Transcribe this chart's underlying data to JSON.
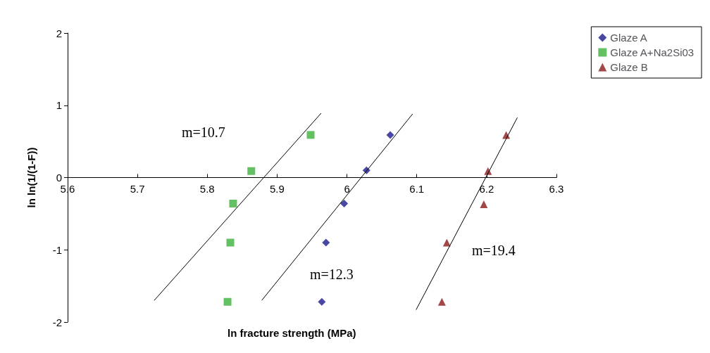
{
  "chart_data": {
    "type": "scatter",
    "xlabel": "ln fracture strength (MPa)",
    "ylabel": "ln ln(1/(1-F))",
    "xlim": [
      5.6,
      6.3
    ],
    "xticks": [
      5.6,
      5.7,
      5.8,
      5.9,
      6,
      6.1,
      6.2,
      6.3
    ],
    "ylim": [
      -2,
      2
    ],
    "yticks": [
      -2,
      -1,
      0,
      1,
      2
    ],
    "grid": false,
    "legend": "right",
    "series": [
      {
        "name": "Glaze A",
        "color": "#1a1a8c",
        "marker": "diamond",
        "x": [
          5.964,
          5.97,
          5.996,
          6.028,
          6.062
        ],
        "values": [
          -1.72,
          -0.9,
          -0.36,
          0.1,
          0.59
        ]
      },
      {
        "name": "Glaze A+Na2Si03",
        "color": "#3cb03c",
        "marker": "square",
        "x": [
          5.829,
          5.833,
          5.837,
          5.863,
          5.948
        ],
        "values": [
          -1.72,
          -0.9,
          -0.36,
          0.09,
          0.59
        ]
      },
      {
        "name": "Glaze B",
        "color": "#8b1a1a",
        "marker": "triangle",
        "x": [
          6.136,
          6.143,
          6.196,
          6.202,
          6.228
        ],
        "values": [
          -1.72,
          -0.9,
          -0.37,
          0.09,
          0.59
        ]
      },
      {
        "type": "line",
        "color": "#000000",
        "marker": "none",
        "x": [
          5.724,
          5.963
        ],
        "values": [
          -1.7,
          0.89
        ]
      },
      {
        "type": "line",
        "color": "#000000",
        "marker": "none",
        "x": [
          5.878,
          6.094
        ],
        "values": [
          -1.7,
          0.88
        ]
      },
      {
        "type": "line",
        "color": "#000000",
        "marker": "none",
        "x": [
          6.099,
          6.244
        ],
        "values": [
          -1.83,
          0.83
        ]
      }
    ],
    "annotations": [
      "m=10.7",
      "m=12.3",
      "m=19.4"
    ]
  }
}
